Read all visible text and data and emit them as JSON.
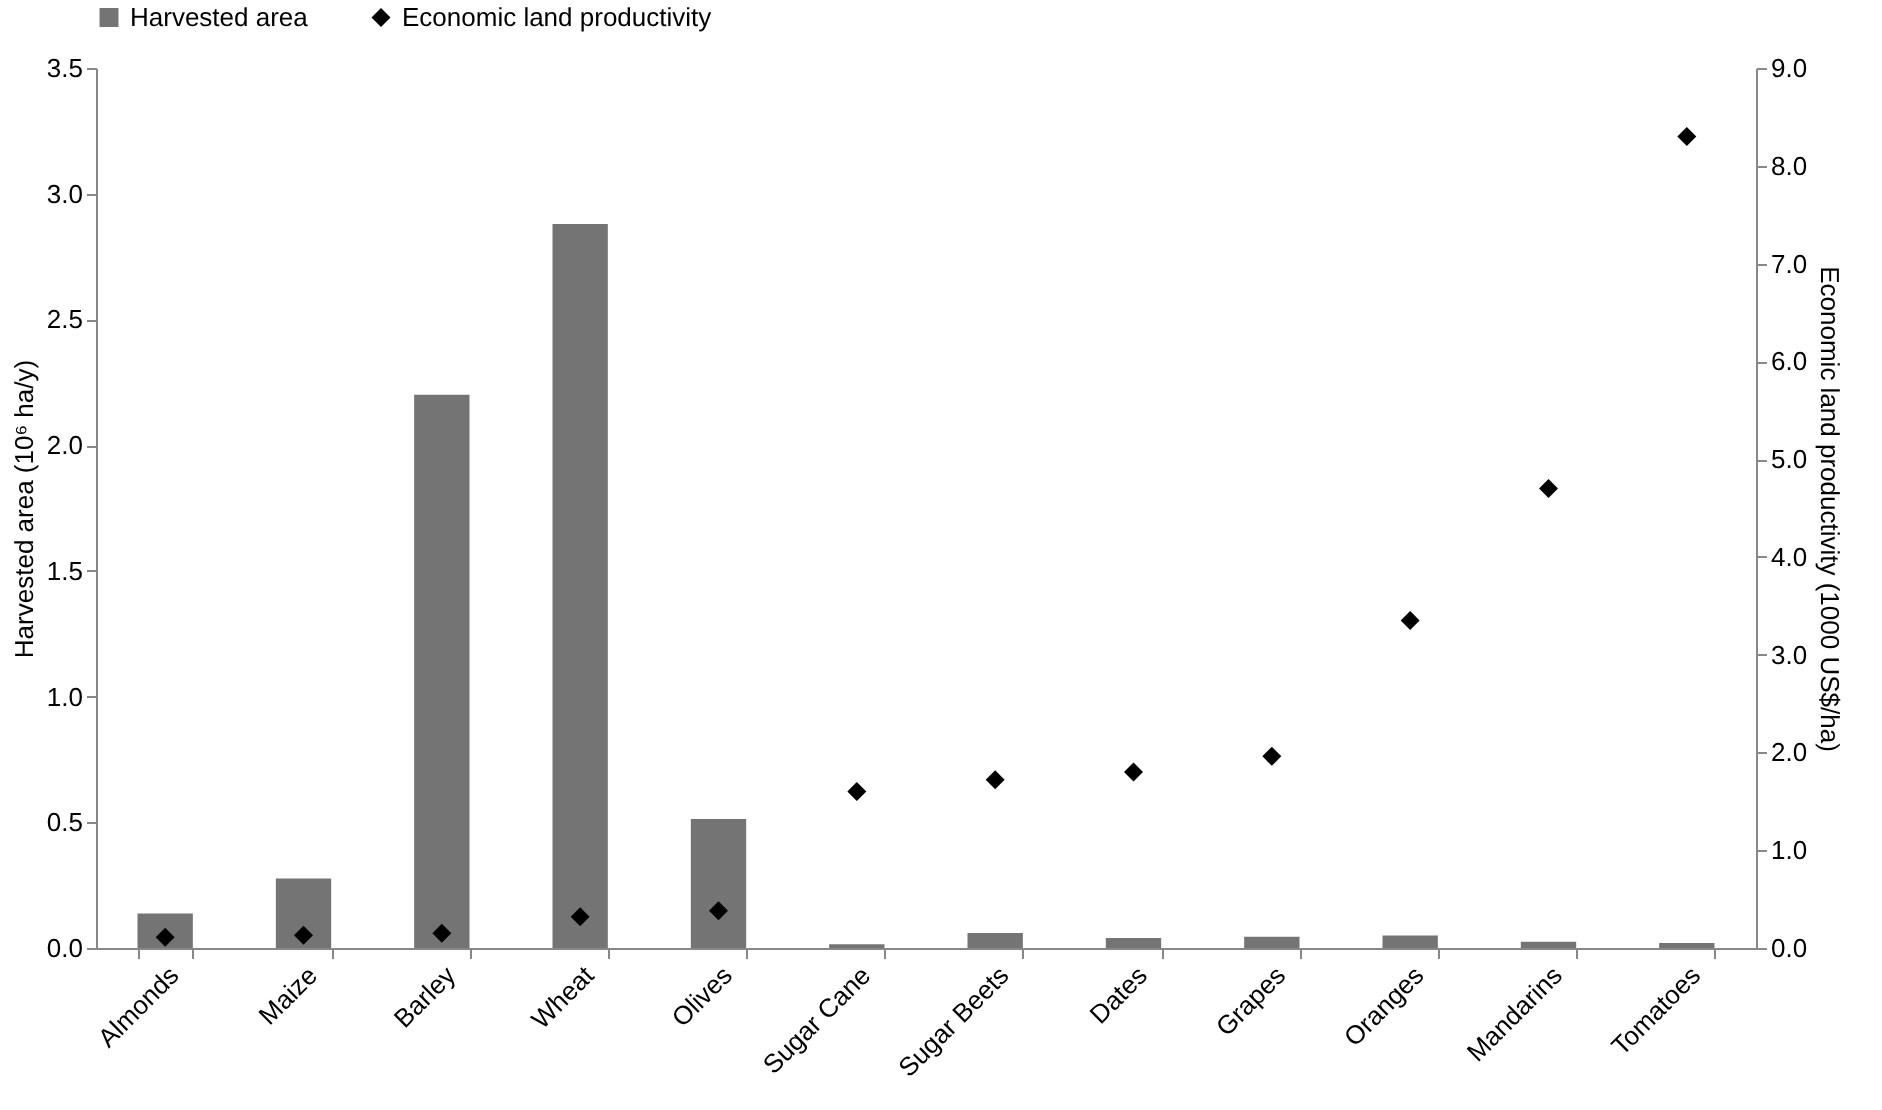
{
  "chart_data": {
    "type": "bar",
    "ylabel": "Harvested area (10⁶ ha/y)",
    "y2label": "Economic land productivity (1000 US$/ha)",
    "categories": [
      "Almonds",
      "Maize",
      "Barley",
      "Wheat",
      "Olives",
      "Sugar Cane",
      "Sugar Beets",
      "Dates",
      "Grapes",
      "Oranges",
      "Mandarins",
      "Tomatoes"
    ],
    "series": [
      {
        "name": "Harvested area",
        "color": "#737473",
        "values": [
          0.137,
          0.276,
          2.2,
          2.88,
          0.513,
          0.015,
          0.06,
          0.04,
          0.045,
          0.05,
          0.025,
          0.02
        ]
      },
      {
        "name": "Economic land productivity",
        "type": "scatter",
        "axis": "y2",
        "marker": "diamond",
        "color": "#000000",
        "values": [
          0.11,
          0.13,
          0.15,
          0.32,
          0.38,
          1.6,
          1.72,
          1.8,
          1.96,
          3.35,
          4.7,
          8.3
        ]
      }
    ],
    "ylim": [
      0,
      3.5
    ],
    "yticks": [
      {
        "value": 0,
        "label": "0.0"
      },
      {
        "value": 0.5,
        "label": "0.5"
      },
      {
        "value": 1,
        "label": "1.0"
      },
      {
        "value": 1.5,
        "label": "1.5"
      },
      {
        "value": 2,
        "label": "2.0"
      },
      {
        "value": 2.5,
        "label": "2.5"
      },
      {
        "value": 3,
        "label": "3.0"
      },
      {
        "value": 3.5,
        "label": "3.5"
      }
    ],
    "y2lim": [
      0,
      9
    ],
    "y2ticks": [
      {
        "value": 0,
        "label": "0.0"
      },
      {
        "value": 1,
        "label": "1.0"
      },
      {
        "value": 2,
        "label": "2.0"
      },
      {
        "value": 3,
        "label": "3.0"
      },
      {
        "value": 4,
        "label": "4.0"
      },
      {
        "value": 5,
        "label": "5.0"
      },
      {
        "value": 6,
        "label": "6.0"
      },
      {
        "value": 7,
        "label": "7.0"
      },
      {
        "value": 8,
        "label": "8.0"
      },
      {
        "value": 9,
        "label": "9.0"
      }
    ],
    "legend": "top",
    "grid": false
  }
}
